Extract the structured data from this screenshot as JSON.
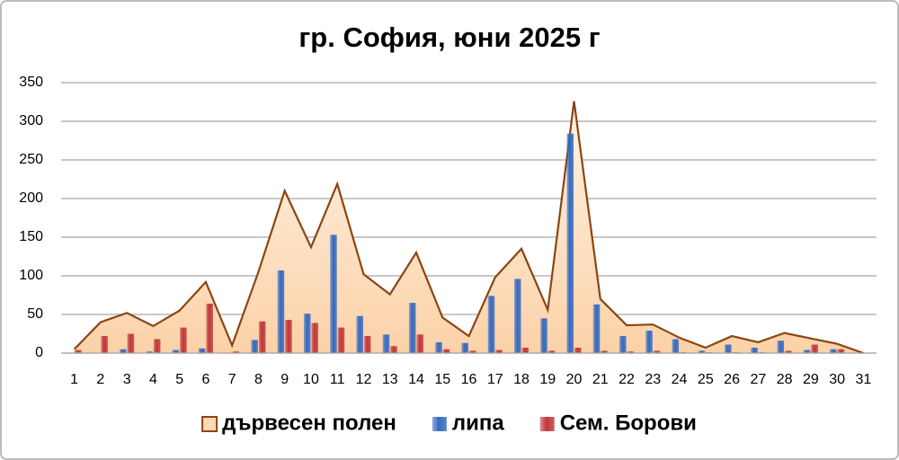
{
  "chart_data": {
    "type": "bar",
    "title": "гр. София, юни 2025 г",
    "categories": [
      "1",
      "2",
      "3",
      "4",
      "5",
      "6",
      "7",
      "8",
      "9",
      "10",
      "11",
      "12",
      "13",
      "14",
      "15",
      "16",
      "17",
      "18",
      "19",
      "20",
      "21",
      "22",
      "23",
      "24",
      "25",
      "26",
      "27",
      "28",
      "29",
      "30",
      "31"
    ],
    "series": [
      {
        "name": "дървесен полен",
        "type": "area",
        "color": "#fbd9b5",
        "edge_color": "#8b4513",
        "values": [
          5,
          40,
          52,
          35,
          55,
          92,
          10,
          105,
          210,
          137,
          219,
          102,
          76,
          130,
          46,
          22,
          98,
          135,
          56,
          326,
          70,
          36,
          37,
          20,
          7,
          22,
          14,
          26,
          19,
          12,
          0
        ]
      },
      {
        "name": "липа",
        "type": "bar",
        "color": "#3569c0",
        "values": [
          0,
          0,
          5,
          2,
          4,
          6,
          0,
          17,
          107,
          51,
          153,
          48,
          24,
          65,
          14,
          13,
          74,
          96,
          45,
          284,
          63,
          22,
          29,
          18,
          3,
          11,
          7,
          16,
          4,
          5,
          0
        ]
      },
      {
        "name": "Сем. Борови",
        "type": "bar",
        "color": "#c0363a",
        "values": [
          4,
          22,
          25,
          18,
          33,
          64,
          2,
          41,
          43,
          39,
          33,
          22,
          9,
          24,
          5,
          3,
          4,
          7,
          3,
          7,
          3,
          2,
          3,
          1,
          1,
          1,
          1,
          3,
          11,
          5,
          0
        ]
      }
    ],
    "ylim": [
      0,
      350
    ],
    "yticks": [
      0,
      50,
      100,
      150,
      200,
      250,
      300,
      350
    ],
    "grid": true,
    "legend": "bottom"
  }
}
